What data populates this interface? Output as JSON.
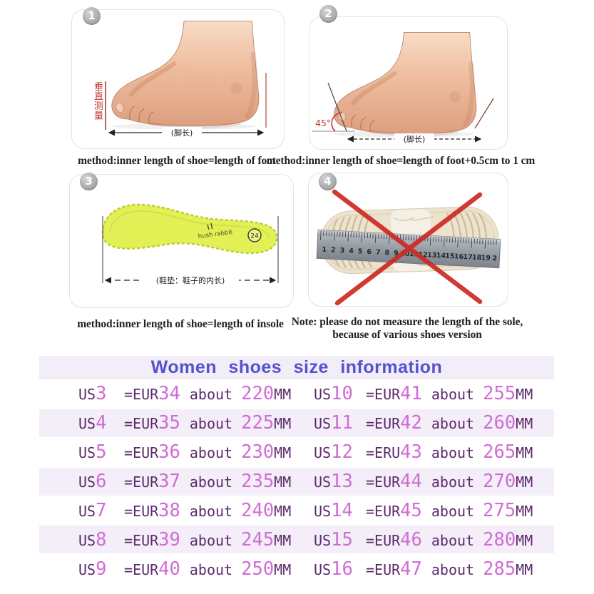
{
  "colors": {
    "title": "#5452cf",
    "band": "#f2edf7",
    "stripe": "#f4eef8",
    "dark": "#5d2a6b",
    "digit": "#d06dd4",
    "caption": "#232323",
    "red": "#ce2a22"
  },
  "panels": [
    {
      "num": "1",
      "caption": "method:inner length of shoe=length of foot",
      "vertical_label": "垂直测量",
      "length_label": "(脚长)"
    },
    {
      "num": "2",
      "caption": "method:inner length of shoe=length of foot+0.5cm to 1 cm",
      "angle_label": "45°",
      "length_label": "(脚长)"
    },
    {
      "num": "3",
      "caption": "method:inner length of shoe=length of insole",
      "length_label": "(鞋垫：鞋子的内长)",
      "brand_label": "hush rabbit",
      "badge_label": "24"
    },
    {
      "num": "4",
      "caption_line1": "Note: please do not measure the length of the sole,",
      "caption_line2": "because of various shoes version",
      "ruler_numbers": [
        "1",
        "2",
        "3",
        "4",
        "5",
        "6",
        "7",
        "8",
        "9",
        "10",
        "11",
        "12",
        "13",
        "14",
        "15",
        "16",
        "17",
        "18",
        "19",
        "2"
      ]
    }
  ],
  "size_table": {
    "title": "Women shoes size information",
    "rows": [
      {
        "left": {
          "us": "US",
          "usn": "3",
          "eq": "=EUR",
          "eur": "34",
          "about": "about",
          "mm": "220",
          "unit": "MM"
        },
        "right": {
          "us": "US",
          "usn": "10",
          "eq": "=EUR",
          "eur": "41",
          "about": "about",
          "mm": "255",
          "unit": "MM"
        }
      },
      {
        "left": {
          "us": "US",
          "usn": "4",
          "eq": "=EUR",
          "eur": "35",
          "about": "about",
          "mm": "225",
          "unit": "MM"
        },
        "right": {
          "us": "US",
          "usn": "11",
          "eq": "=EUR",
          "eur": "42",
          "about": "about",
          "mm": "260",
          "unit": "MM"
        }
      },
      {
        "left": {
          "us": "US",
          "usn": "5",
          "eq": "=EUR",
          "eur": "36",
          "about": "about",
          "mm": "230",
          "unit": "MM"
        },
        "right": {
          "us": "US",
          "usn": "12",
          "eq": "=ERU",
          "eur": "43",
          "about": "about",
          "mm": "265",
          "unit": "MM"
        }
      },
      {
        "left": {
          "us": "US",
          "usn": "6",
          "eq": "=EUR",
          "eur": "37",
          "about": "about",
          "mm": "235",
          "unit": "MM"
        },
        "right": {
          "us": "US",
          "usn": "13",
          "eq": "=EUR",
          "eur": "44",
          "about": "about",
          "mm": "270",
          "unit": "MM"
        }
      },
      {
        "left": {
          "us": "US",
          "usn": "7",
          "eq": "=EUR",
          "eur": "38",
          "about": "about",
          "mm": "240",
          "unit": "MM"
        },
        "right": {
          "us": "US",
          "usn": "14",
          "eq": "=EUR",
          "eur": "45",
          "about": "about",
          "mm": "275",
          "unit": "MM"
        }
      },
      {
        "left": {
          "us": "US",
          "usn": "8",
          "eq": "=EUR",
          "eur": "39",
          "about": "about",
          "mm": "245",
          "unit": "MM"
        },
        "right": {
          "us": "US",
          "usn": "15",
          "eq": "=EUR",
          "eur": "46",
          "about": "about",
          "mm": "280",
          "unit": "MM"
        }
      },
      {
        "left": {
          "us": "US",
          "usn": "9",
          "eq": "=EUR",
          "eur": "40",
          "about": "about",
          "mm": "250",
          "unit": "MM"
        },
        "right": {
          "us": "US",
          "usn": "16",
          "eq": "=EUR",
          "eur": "47",
          "about": "about",
          "mm": "285",
          "unit": "MM"
        }
      }
    ]
  }
}
